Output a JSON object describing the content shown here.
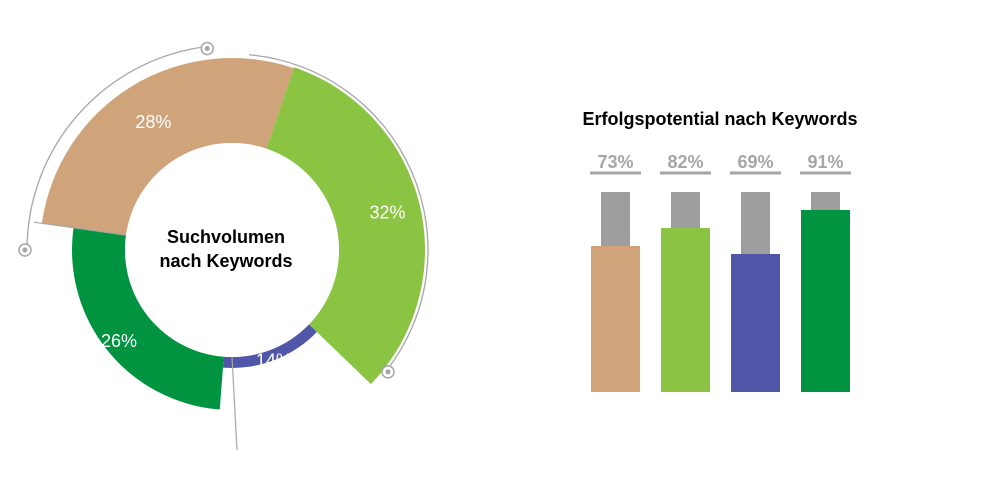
{
  "colors": {
    "tan": "#d0a47b",
    "light_green": "#8bc343",
    "blue": "#5057a8",
    "dark_green": "#009440",
    "gray": "#9e9e9e",
    "arc_line": "#a6a6a6",
    "label_gray": "#a6a6a6",
    "title": "#000000",
    "white": "#ffffff"
  },
  "chart_data": [
    {
      "type": "pie",
      "variant": "donut",
      "center_label": [
        "Suchvolumen",
        "nach Keywords"
      ],
      "slices": [
        {
          "label": "28%",
          "value": 28,
          "color": "tan"
        },
        {
          "label": "32%",
          "value": 32,
          "color": "light_green"
        },
        {
          "label": "14%",
          "value": 14,
          "color": "blue"
        },
        {
          "label": "26%",
          "value": 26,
          "color": "dark_green"
        }
      ]
    },
    {
      "type": "bar",
      "title": "Erfolgspotential nach Keywords",
      "stacked_against_total": 100,
      "categories": [
        "",
        "",
        "",
        ""
      ],
      "values": [
        73,
        82,
        69,
        91
      ],
      "value_labels": [
        "73%",
        "82%",
        "69%",
        "91%"
      ],
      "colors": [
        "tan",
        "light_green",
        "blue",
        "dark_green"
      ],
      "remainder_color": "gray",
      "ylim": [
        0,
        100
      ]
    }
  ]
}
